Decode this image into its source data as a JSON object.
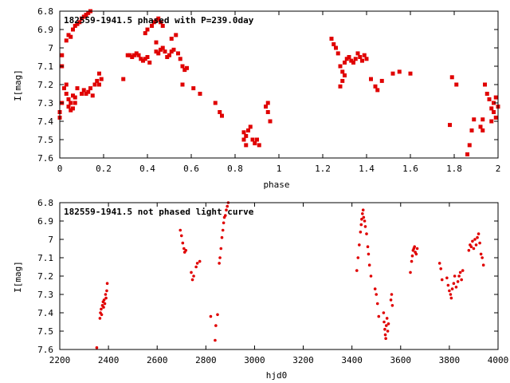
{
  "chart_data": [
    {
      "type": "scatter",
      "title": "182559-1941.5 phased with P=239.0day",
      "xlabel": "phase",
      "ylabel": "I[mag]",
      "xlim": [
        0,
        2
      ],
      "ylim": [
        6.8,
        7.6
      ],
      "y_inverted": true,
      "grid": false,
      "x_ticks": [
        "0",
        "0.2",
        "0.4",
        "0.6",
        "0.8",
        "1",
        "1.2",
        "1.4",
        "1.6",
        "1.8",
        "2"
      ],
      "y_ticks": [
        "6.8",
        "6.9",
        "7",
        "7.1",
        "7.2",
        "7.3",
        "7.4",
        "7.5",
        "7.6"
      ],
      "color": "#e00000",
      "marker": "star",
      "points": [
        [
          0.0,
          7.38
        ],
        [
          0.0,
          7.35
        ],
        [
          0.01,
          7.3
        ],
        [
          0.02,
          7.22
        ],
        [
          0.03,
          7.25
        ],
        [
          0.04,
          7.28
        ],
        [
          0.04,
          7.32
        ],
        [
          0.05,
          7.34
        ],
        [
          0.05,
          7.3
        ],
        [
          0.06,
          7.26
        ],
        [
          0.06,
          7.33
        ],
        [
          0.07,
          7.3
        ],
        [
          0.07,
          7.27
        ],
        [
          0.08,
          7.22
        ],
        [
          0.03,
          7.2
        ],
        [
          0.01,
          7.04
        ],
        [
          0.01,
          7.1
        ],
        [
          0.03,
          6.96
        ],
        [
          0.04,
          6.93
        ],
        [
          0.05,
          6.94
        ],
        [
          0.06,
          6.9
        ],
        [
          0.07,
          6.88
        ],
        [
          0.08,
          6.87
        ],
        [
          0.09,
          6.86
        ],
        [
          0.1,
          6.84
        ],
        [
          0.11,
          6.83
        ],
        [
          0.12,
          6.82
        ],
        [
          0.13,
          6.81
        ],
        [
          0.14,
          6.8
        ],
        [
          0.1,
          7.25
        ],
        [
          0.11,
          7.23
        ],
        [
          0.12,
          7.25
        ],
        [
          0.13,
          7.24
        ],
        [
          0.14,
          7.22
        ],
        [
          0.15,
          7.26
        ],
        [
          0.16,
          7.2
        ],
        [
          0.17,
          7.18
        ],
        [
          0.18,
          7.2
        ],
        [
          0.19,
          7.17
        ],
        [
          0.18,
          7.14
        ],
        [
          0.29,
          7.17
        ],
        [
          0.31,
          7.04
        ],
        [
          0.32,
          7.04
        ],
        [
          0.33,
          7.05
        ],
        [
          0.34,
          7.04
        ],
        [
          0.35,
          7.03
        ],
        [
          0.36,
          7.04
        ],
        [
          0.37,
          7.06
        ],
        [
          0.38,
          7.07
        ],
        [
          0.39,
          7.06
        ],
        [
          0.4,
          7.05
        ],
        [
          0.41,
          7.08
        ],
        [
          0.39,
          6.92
        ],
        [
          0.4,
          6.9
        ],
        [
          0.42,
          6.88
        ],
        [
          0.43,
          6.86
        ],
        [
          0.44,
          6.85
        ],
        [
          0.45,
          6.84
        ],
        [
          0.46,
          6.86
        ],
        [
          0.47,
          6.88
        ],
        [
          0.44,
          6.97
        ],
        [
          0.44,
          7.02
        ],
        [
          0.45,
          7.03
        ],
        [
          0.46,
          7.01
        ],
        [
          0.47,
          7.0
        ],
        [
          0.48,
          7.02
        ],
        [
          0.49,
          7.05
        ],
        [
          0.5,
          7.04
        ],
        [
          0.51,
          7.02
        ],
        [
          0.52,
          7.01
        ],
        [
          0.51,
          6.95
        ],
        [
          0.53,
          6.93
        ],
        [
          0.54,
          7.03
        ],
        [
          0.55,
          7.06
        ],
        [
          0.56,
          7.1
        ],
        [
          0.57,
          7.12
        ],
        [
          0.58,
          7.11
        ],
        [
          0.56,
          7.2
        ],
        [
          0.61,
          7.22
        ],
        [
          0.64,
          7.25
        ],
        [
          0.71,
          7.3
        ],
        [
          0.73,
          7.35
        ],
        [
          0.74,
          7.37
        ],
        [
          0.84,
          7.46
        ],
        [
          0.84,
          7.5
        ],
        [
          0.85,
          7.53
        ],
        [
          0.85,
          7.48
        ],
        [
          0.86,
          7.45
        ],
        [
          0.87,
          7.43
        ],
        [
          0.88,
          7.5
        ],
        [
          0.89,
          7.52
        ],
        [
          0.9,
          7.5
        ],
        [
          0.91,
          7.53
        ],
        [
          0.94,
          7.32
        ],
        [
          0.95,
          7.3
        ],
        [
          0.95,
          7.35
        ],
        [
          0.96,
          7.4
        ],
        [
          1.24,
          6.95
        ],
        [
          1.25,
          6.98
        ],
        [
          1.26,
          7.0
        ],
        [
          1.27,
          7.03
        ],
        [
          1.28,
          7.1
        ],
        [
          1.29,
          7.13
        ],
        [
          1.3,
          7.08
        ],
        [
          1.3,
          7.15
        ],
        [
          1.31,
          7.06
        ],
        [
          1.32,
          7.05
        ],
        [
          1.33,
          7.07
        ],
        [
          1.34,
          7.08
        ],
        [
          1.35,
          7.06
        ],
        [
          1.36,
          7.03
        ],
        [
          1.37,
          7.05
        ],
        [
          1.38,
          7.07
        ],
        [
          1.39,
          7.04
        ],
        [
          1.4,
          7.06
        ],
        [
          1.28,
          7.21
        ],
        [
          1.29,
          7.18
        ],
        [
          1.42,
          7.17
        ],
        [
          1.44,
          7.21
        ],
        [
          1.45,
          7.23
        ],
        [
          1.47,
          7.18
        ],
        [
          1.52,
          7.14
        ],
        [
          1.55,
          7.13
        ],
        [
          1.6,
          7.14
        ],
        [
          1.78,
          7.42
        ],
        [
          1.79,
          7.16
        ],
        [
          1.81,
          7.2
        ],
        [
          1.86,
          7.58
        ],
        [
          1.87,
          7.53
        ],
        [
          1.88,
          7.45
        ],
        [
          1.89,
          7.39
        ],
        [
          1.92,
          7.43
        ],
        [
          1.93,
          7.39
        ],
        [
          1.93,
          7.45
        ],
        [
          1.94,
          7.2
        ],
        [
          1.95,
          7.25
        ],
        [
          1.96,
          7.28
        ],
        [
          1.97,
          7.33
        ],
        [
          1.98,
          7.35
        ],
        [
          1.98,
          7.3
        ],
        [
          1.99,
          7.38
        ],
        [
          2.0,
          7.32
        ],
        [
          1.97,
          7.4
        ],
        [
          1.99,
          7.27
        ]
      ]
    },
    {
      "type": "scatter",
      "title": "182559-1941.5 not phased light curve",
      "xlabel": "hjd0",
      "ylabel": "I[mag]",
      "xlim": [
        2200,
        4000
      ],
      "ylim": [
        6.8,
        7.6
      ],
      "y_inverted": true,
      "grid": false,
      "x_ticks": [
        "2200",
        "2400",
        "2600",
        "2800",
        "3000",
        "3200",
        "3400",
        "3600",
        "3800",
        "4000"
      ],
      "y_ticks": [
        "6.8",
        "6.9",
        "7",
        "7.1",
        "7.2",
        "7.3",
        "7.4",
        "7.5",
        "7.6"
      ],
      "color": "#e00000",
      "marker": "dot",
      "points": [
        [
          2352,
          7.59
        ],
        [
          2365,
          7.43
        ],
        [
          2367,
          7.4
        ],
        [
          2370,
          7.38
        ],
        [
          2372,
          7.41
        ],
        [
          2375,
          7.36
        ],
        [
          2378,
          7.34
        ],
        [
          2380,
          7.37
        ],
        [
          2382,
          7.33
        ],
        [
          2385,
          7.35
        ],
        [
          2388,
          7.3
        ],
        [
          2390,
          7.32
        ],
        [
          2393,
          7.28
        ],
        [
          2395,
          7.24
        ],
        [
          2695,
          6.95
        ],
        [
          2700,
          6.98
        ],
        [
          2705,
          7.02
        ],
        [
          2710,
          7.05
        ],
        [
          2713,
          7.07
        ],
        [
          2718,
          7.06
        ],
        [
          2740,
          7.18
        ],
        [
          2745,
          7.22
        ],
        [
          2750,
          7.2
        ],
        [
          2760,
          7.15
        ],
        [
          2765,
          7.13
        ],
        [
          2775,
          7.12
        ],
        [
          2820,
          7.42
        ],
        [
          2838,
          7.55
        ],
        [
          2841,
          7.47
        ],
        [
          2848,
          7.41
        ],
        [
          2855,
          7.13
        ],
        [
          2858,
          7.1
        ],
        [
          2862,
          7.05
        ],
        [
          2866,
          6.99
        ],
        [
          2870,
          6.95
        ],
        [
          2873,
          6.91
        ],
        [
          2876,
          6.88
        ],
        [
          2880,
          6.87
        ],
        [
          2884,
          6.84
        ],
        [
          2888,
          6.82
        ],
        [
          2892,
          6.8
        ],
        [
          3420,
          7.17
        ],
        [
          3425,
          7.1
        ],
        [
          3430,
          7.03
        ],
        [
          3435,
          6.96
        ],
        [
          3438,
          6.92
        ],
        [
          3440,
          6.89
        ],
        [
          3443,
          6.86
        ],
        [
          3446,
          6.84
        ],
        [
          3448,
          6.88
        ],
        [
          3452,
          6.9
        ],
        [
          3455,
          6.93
        ],
        [
          3460,
          6.97
        ],
        [
          3465,
          7.04
        ],
        [
          3468,
          7.08
        ],
        [
          3472,
          7.14
        ],
        [
          3478,
          7.2
        ],
        [
          3495,
          7.27
        ],
        [
          3500,
          7.3
        ],
        [
          3505,
          7.35
        ],
        [
          3510,
          7.42
        ],
        [
          3530,
          7.4
        ],
        [
          3532,
          7.45
        ],
        [
          3535,
          7.49
        ],
        [
          3537,
          7.52
        ],
        [
          3539,
          7.54
        ],
        [
          3541,
          7.47
        ],
        [
          3544,
          7.43
        ],
        [
          3547,
          7.5
        ],
        [
          3550,
          7.46
        ],
        [
          3560,
          7.33
        ],
        [
          3563,
          7.3
        ],
        [
          3566,
          7.36
        ],
        [
          3640,
          7.18
        ],
        [
          3645,
          7.12
        ],
        [
          3648,
          7.09
        ],
        [
          3651,
          7.06
        ],
        [
          3654,
          7.05
        ],
        [
          3657,
          7.04
        ],
        [
          3660,
          7.07
        ],
        [
          3664,
          7.08
        ],
        [
          3668,
          7.05
        ],
        [
          3760,
          7.13
        ],
        [
          3765,
          7.16
        ],
        [
          3770,
          7.22
        ],
        [
          3790,
          7.21
        ],
        [
          3795,
          7.25
        ],
        [
          3800,
          7.28
        ],
        [
          3805,
          7.3
        ],
        [
          3808,
          7.32
        ],
        [
          3812,
          7.27
        ],
        [
          3818,
          7.24
        ],
        [
          3822,
          7.2
        ],
        [
          3828,
          7.26
        ],
        [
          3835,
          7.23
        ],
        [
          3840,
          7.2
        ],
        [
          3845,
          7.18
        ],
        [
          3850,
          7.22
        ],
        [
          3855,
          7.17
        ],
        [
          3880,
          7.06
        ],
        [
          3885,
          7.03
        ],
        [
          3890,
          7.04
        ],
        [
          3895,
          7.01
        ],
        [
          3900,
          7.05
        ],
        [
          3905,
          7.0
        ],
        [
          3910,
          7.03
        ],
        [
          3915,
          6.99
        ],
        [
          3920,
          6.97
        ],
        [
          3925,
          7.02
        ],
        [
          3930,
          7.08
        ],
        [
          3935,
          7.1
        ],
        [
          3940,
          7.14
        ]
      ]
    }
  ]
}
